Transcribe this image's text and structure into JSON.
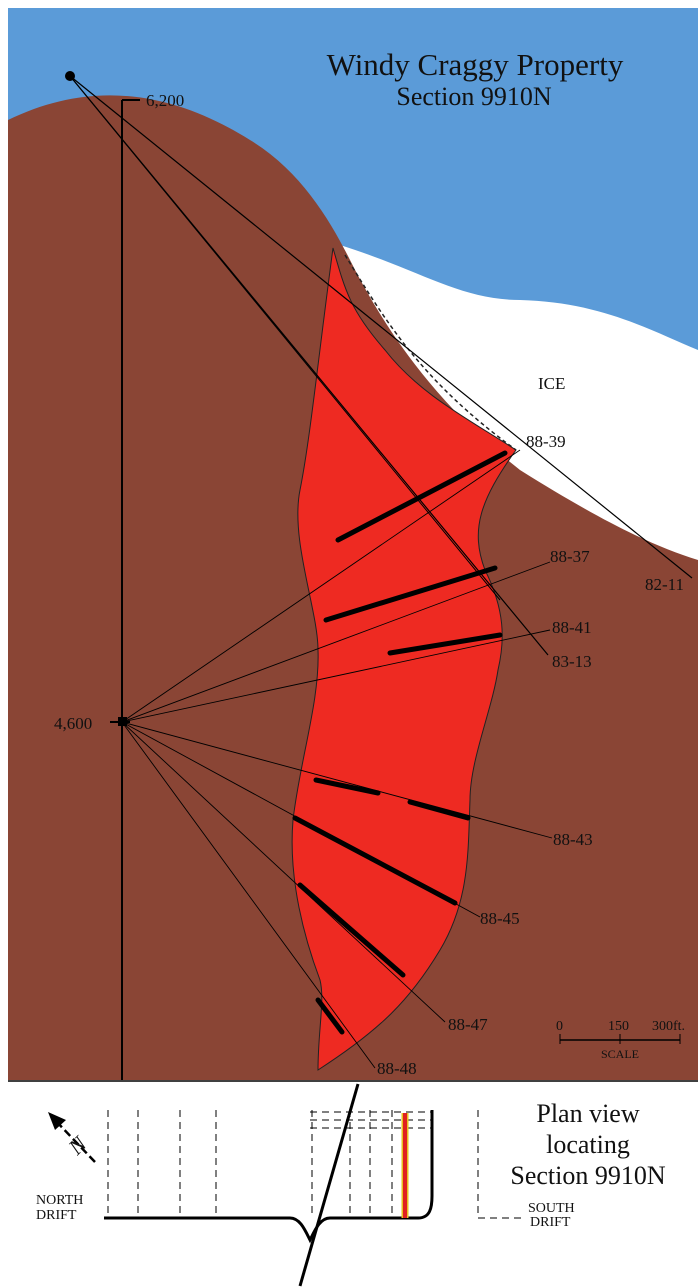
{
  "title": "Windy Craggy Property",
  "subtitle": "Section 9910N",
  "elevations": {
    "top": "6,200",
    "mid": "4,600"
  },
  "ice_label": "ICE",
  "holes": {
    "h1": "88-39",
    "h2": "82-11",
    "h3": "88-37",
    "h4": "88-41",
    "h5": "83-13",
    "h6": "88-43",
    "h7": "88-45",
    "h8": "88-47",
    "h9": "88-48"
  },
  "scale": {
    "t0": "0",
    "t1": "150",
    "t2": "300ft.",
    "label": "SCALE"
  },
  "plan": {
    "title1": "Plan view",
    "title2": "locating",
    "title3": "Section 9910N",
    "north_label1": "NORTH",
    "north_label2": "DRIFT",
    "south_label1": "SOUTH",
    "south_label2": "DRIFT",
    "north_arrow": "N"
  },
  "colors": {
    "sky": "#5b9bd8",
    "rock": "#8a4535",
    "ore": "#ee2a22",
    "ice": "#ffffff",
    "section_line": "#e02020",
    "section_outline": "#e8c020"
  }
}
